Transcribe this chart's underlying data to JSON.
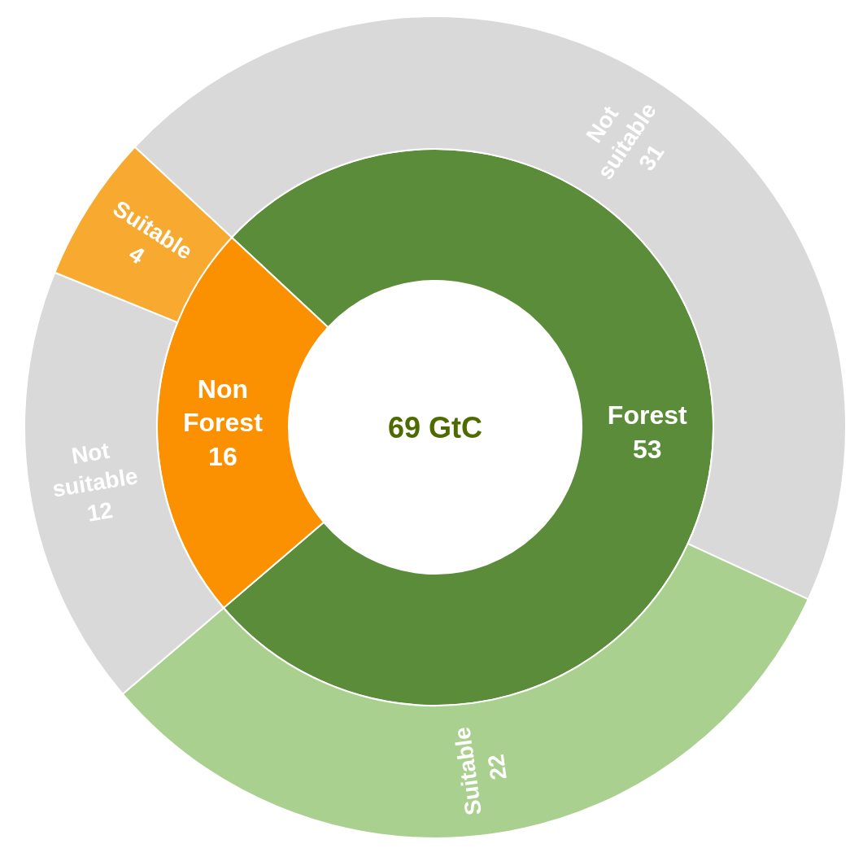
{
  "chart_data": [
    {
      "type": "donut",
      "categories": [
        "Forest",
        "Non Forest"
      ],
      "values": [
        53,
        16
      ],
      "colors": [
        "#5b8c39",
        "#fb9100"
      ],
      "data_labels": true,
      "annotations": [
        "69 GtC"
      ]
    },
    {
      "type": "donut",
      "categories": [
        "Not suitable",
        "Suitable",
        "Not suitable",
        "Suitable"
      ],
      "values": [
        31,
        22,
        12,
        4
      ],
      "colors": [
        "#d9d9d9",
        "#a9d08e",
        "#d9d9d9",
        "#f7a930"
      ],
      "data_labels": true
    }
  ]
}
